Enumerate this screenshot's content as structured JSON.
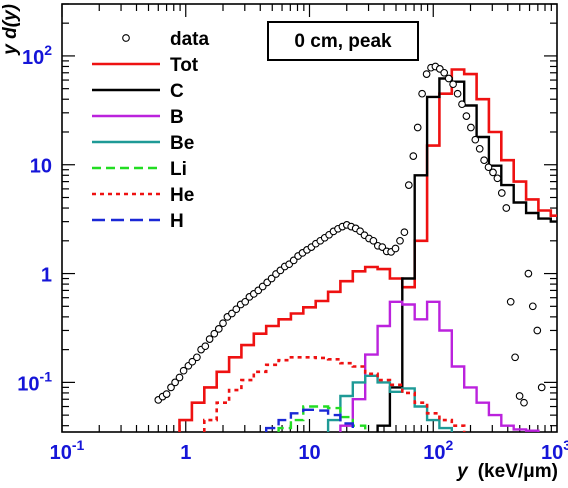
{
  "chart_data": {
    "type": "line",
    "title": "",
    "annotation": "0 cm, peak",
    "xlabel_symbol": "y",
    "xlabel_unit": "(keV/μm)",
    "ylabel": "y d(y)",
    "x_scale": "log",
    "y_scale": "log",
    "xlim": [
      0.1,
      1000
    ],
    "ylim": [
      0.035,
      300
    ],
    "x_ticks": [
      {
        "value": 0.1,
        "base": "10",
        "exp": "-1"
      },
      {
        "value": 1,
        "base": "1",
        "exp": ""
      },
      {
        "value": 10,
        "base": "10",
        "exp": ""
      },
      {
        "value": 100,
        "base": "10",
        "exp": "2"
      },
      {
        "value": 1000,
        "base": "10",
        "exp": "3"
      }
    ],
    "y_ticks": [
      {
        "value": 0.1,
        "base": "10",
        "exp": "-1"
      },
      {
        "value": 1,
        "base": "1",
        "exp": ""
      },
      {
        "value": 10,
        "base": "10",
        "exp": ""
      },
      {
        "value": 100,
        "base": "10",
        "exp": "2"
      }
    ],
    "grid": false,
    "legend_position": "top-left",
    "bin_edges": [
      0.891,
      1.122,
      1.413,
      1.778,
      2.239,
      2.818,
      3.548,
      4.467,
      5.623,
      7.079,
      8.913,
      11.22,
      14.13,
      17.78,
      22.39,
      28.18,
      35.48,
      44.67,
      56.23,
      70.79,
      89.13,
      112.2,
      141.3,
      177.8,
      223.9,
      281.8,
      354.8,
      446.7,
      562.3,
      707.9,
      891.3,
      1000
    ],
    "series": [
      {
        "name": "Tot",
        "style": "step",
        "color": "#ee1111",
        "dash": "",
        "width": 2.6,
        "values": [
          0.045,
          0.065,
          0.09,
          0.125,
          0.17,
          0.22,
          0.28,
          0.33,
          0.38,
          0.43,
          0.49,
          0.56,
          0.68,
          0.85,
          1.05,
          1.15,
          1.1,
          0.9,
          0.75,
          2.0,
          15,
          45,
          75,
          68,
          40,
          20,
          11,
          7,
          4.8,
          3.8,
          3.4
        ]
      },
      {
        "name": "C",
        "style": "step",
        "color": "#000000",
        "dash": "",
        "width": 2.4,
        "start_edge": 16,
        "values": [
          0.04,
          0.09,
          0.9,
          8.0,
          42,
          62,
          58,
          35,
          18,
          9.8,
          6.5,
          4.5,
          3.6,
          3.2,
          3.0
        ]
      },
      {
        "name": "B",
        "style": "step",
        "color": "#bb22dd",
        "dash": "",
        "width": 2.4,
        "start_edge": 13,
        "values": [
          0.04,
          0.07,
          0.18,
          0.33,
          0.55,
          0.52,
          0.38,
          0.55,
          0.3,
          0.14,
          0.09,
          0.065,
          0.05,
          0.04,
          0.037,
          0.036
        ]
      },
      {
        "name": "Be",
        "style": "step",
        "color": "#1e9a96",
        "dash": "",
        "width": 2.4,
        "start_edge": 12,
        "values": [
          0.045,
          0.075,
          0.1,
          0.115,
          0.1,
          0.082,
          0.088,
          0.06,
          0.045,
          0.038
        ]
      },
      {
        "name": "Li",
        "style": "step",
        "color": "#22dd22",
        "dash": "9,5",
        "width": 2.4,
        "start_edge": 8,
        "values": [
          0.038,
          0.045,
          0.06,
          0.06,
          0.058,
          0.048,
          0.04
        ]
      },
      {
        "name": "He",
        "style": "step",
        "color": "#ee1111",
        "dash": "4,4",
        "width": 2.6,
        "start_edge": 2,
        "values": [
          0.045,
          0.065,
          0.085,
          0.105,
          0.125,
          0.145,
          0.16,
          0.17,
          0.17,
          0.168,
          0.163,
          0.15,
          0.14,
          0.12,
          0.105,
          0.095,
          0.08,
          0.065,
          0.052,
          0.045,
          0.04
        ]
      },
      {
        "name": "H",
        "style": "step",
        "color": "#1a28d6",
        "dash": "13,6",
        "width": 2.4,
        "start_edge": 7,
        "values": [
          0.038,
          0.045,
          0.052,
          0.056,
          0.055,
          0.05,
          0.042
        ]
      },
      {
        "name": "data",
        "style": "points",
        "color": "#000000",
        "x": [
          0.6,
          0.65,
          0.7,
          0.76,
          0.82,
          0.89,
          0.96,
          1.05,
          1.13,
          1.23,
          1.33,
          1.44,
          1.56,
          1.7,
          1.85,
          2.0,
          2.17,
          2.36,
          2.56,
          2.78,
          3.02,
          3.27,
          3.55,
          3.86,
          4.19,
          4.55,
          4.94,
          5.36,
          5.82,
          6.32,
          6.86,
          7.45,
          8.09,
          8.78,
          9.54,
          10.36,
          11.25,
          12.22,
          13.26,
          14.4,
          15.64,
          16.98,
          18.44,
          20.03,
          21.74,
          23.61,
          25.64,
          27.84,
          30.24,
          32.84,
          35.65,
          38.72,
          42.04,
          45.66,
          49.58,
          53.84,
          58.46,
          63.48,
          68.94,
          74.86,
          81.29,
          88.28,
          95.86,
          104.1,
          113.0,
          122.7,
          133.3,
          144.7,
          157.2,
          170.7,
          185.3,
          201.3,
          218.5,
          237.3,
          257.7,
          279.8,
          303.9,
          330.0,
          358.3,
          389.1,
          422.5,
          458.8,
          498.3,
          541.1,
          587.6,
          638.0,
          692.8,
          752.4
        ],
        "y": [
          0.069,
          0.074,
          0.078,
          0.09,
          0.1,
          0.111,
          0.128,
          0.142,
          0.155,
          0.17,
          0.2,
          0.215,
          0.25,
          0.28,
          0.31,
          0.35,
          0.4,
          0.43,
          0.47,
          0.52,
          0.55,
          0.61,
          0.65,
          0.7,
          0.76,
          0.83,
          0.9,
          0.99,
          1.07,
          1.16,
          1.22,
          1.32,
          1.45,
          1.55,
          1.65,
          1.75,
          1.88,
          2.0,
          2.13,
          2.27,
          2.44,
          2.58,
          2.7,
          2.8,
          2.7,
          2.6,
          2.45,
          2.25,
          2.1,
          2.0,
          1.8,
          1.75,
          1.6,
          1.58,
          1.7,
          2.0,
          2.4,
          6.5,
          12,
          22,
          45,
          68,
          78,
          80,
          76,
          70,
          62,
          55,
          45,
          36,
          28,
          22,
          17,
          14,
          11,
          9.5,
          8.5,
          7.5,
          5.5,
          4.0,
          0.55,
          0.17,
          0.075,
          0.065,
          1.0,
          0.5,
          0.3,
          0.09
        ]
      }
    ]
  }
}
